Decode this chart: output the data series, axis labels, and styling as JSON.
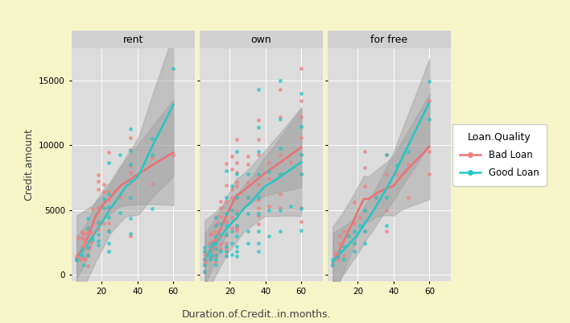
{
  "figure_bg": "#f5f5c8",
  "panel_bg": "#dcdcdc",
  "strip_bg": "#d0d0d0",
  "grid_color": "#ffffff",
  "bad_color": "#f08080",
  "good_color": "#26c6c6",
  "smooth_bad_color": "#f07070",
  "smooth_good_color": "#26c6c6",
  "ci_color": "#a0a0a0",
  "ci_alpha": 0.45,
  "ylabel": "Credit.amount",
  "xlabel": "Duration.of.Credit..in.months.",
  "legend_title": "Loan.Quality",
  "legend_bad": "Bad Loan",
  "legend_good": "Good Loan",
  "ylim": [
    -500,
    17500
  ],
  "xlim": [
    3,
    72
  ],
  "yticks": [
    0,
    5000,
    10000,
    15000
  ],
  "xticks": [
    20,
    40,
    60
  ],
  "point_size": 12,
  "point_alpha": 0.75,
  "facets": [
    "rent",
    "own",
    "for free"
  ],
  "rent_bad_x": [
    6,
    6,
    6,
    7,
    7,
    7,
    8,
    9,
    9,
    9,
    10,
    10,
    10,
    10,
    10,
    11,
    11,
    12,
    12,
    12,
    12,
    12,
    12,
    13,
    13,
    14,
    15,
    15,
    18,
    18,
    18,
    18,
    18,
    18,
    18,
    21,
    21,
    21,
    24,
    24,
    24,
    24,
    24,
    24,
    30,
    36,
    36,
    36,
    36,
    36,
    36,
    48,
    48,
    60
  ],
  "rent_bad_y": [
    1169,
    1244,
    1403,
    2835,
    1265,
    1386,
    1193,
    2096,
    2835,
    3311,
    1282,
    2137,
    2214,
    2759,
    3190,
    1193,
    2464,
    674,
    1474,
    1556,
    2065,
    3229,
    3565,
    2121,
    3585,
    2462,
    5132,
    3234,
    3500,
    3944,
    4111,
    5179,
    6621,
    7253,
    7721,
    4000,
    6415,
    6945,
    3444,
    3969,
    5129,
    5783,
    6419,
    9436,
    5990,
    3001,
    7127,
    7882,
    8383,
    9629,
    10585,
    7028,
    9055,
    9277
  ],
  "rent_good_x": [
    6,
    6,
    9,
    9,
    10,
    12,
    12,
    12,
    12,
    15,
    18,
    18,
    18,
    18,
    21,
    21,
    24,
    24,
    24,
    24,
    24,
    24,
    24,
    30,
    30,
    36,
    36,
    36,
    36,
    36,
    36,
    36,
    48,
    48,
    48,
    60
  ],
  "rent_good_y": [
    1085,
    1200,
    1500,
    1961,
    750,
    1500,
    2121,
    3578,
    4380,
    2728,
    2282,
    2625,
    3124,
    4020,
    5135,
    5825,
    1800,
    2412,
    3354,
    4394,
    5198,
    6204,
    8684,
    4795,
    9271,
    3184,
    4380,
    5951,
    7249,
    8532,
    9620,
    11289,
    5134,
    9277,
    10522,
    15945
  ],
  "own_bad_x": [
    6,
    6,
    6,
    6,
    6,
    6,
    6,
    7,
    8,
    9,
    9,
    9,
    10,
    10,
    10,
    10,
    10,
    10,
    12,
    12,
    12,
    12,
    12,
    12,
    12,
    12,
    12,
    12,
    12,
    13,
    15,
    15,
    15,
    15,
    15,
    15,
    18,
    18,
    18,
    18,
    18,
    18,
    18,
    18,
    18,
    21,
    21,
    21,
    21,
    21,
    21,
    24,
    24,
    24,
    24,
    24,
    24,
    24,
    24,
    24,
    24,
    24,
    30,
    30,
    30,
    30,
    36,
    36,
    36,
    36,
    36,
    36,
    36,
    36,
    36,
    42,
    42,
    42,
    48,
    48,
    48,
    48,
    48,
    48,
    54,
    60,
    60,
    60,
    60,
    60,
    60,
    60,
    60
  ],
  "own_bad_y": [
    250,
    766,
    929,
    1203,
    1264,
    1545,
    1800,
    1100,
    2418,
    1269,
    2418,
    3105,
    1346,
    1768,
    1823,
    2031,
    2570,
    3183,
    1000,
    1398,
    1479,
    1580,
    2001,
    2202,
    2728,
    2762,
    3386,
    3817,
    4455,
    4010,
    2000,
    2339,
    2964,
    4473,
    5171,
    5666,
    1503,
    1840,
    2103,
    2395,
    3066,
    4123,
    5640,
    6938,
    8618,
    3617,
    4394,
    5990,
    6619,
    8136,
    9149,
    3415,
    3637,
    3753,
    4756,
    4920,
    5898,
    6868,
    7178,
    7908,
    8654,
    10472,
    5913,
    7188,
    8523,
    9160,
    3944,
    4511,
    5189,
    5790,
    6952,
    7711,
    9277,
    10474,
    11938,
    5320,
    7409,
    8684,
    5139,
    6224,
    7789,
    9277,
    12217,
    14318,
    8745,
    4123,
    5139,
    7789,
    9277,
    10585,
    12217,
    13481,
    15945
  ],
  "own_good_x": [
    6,
    6,
    6,
    6,
    6,
    9,
    9,
    9,
    9,
    10,
    10,
    12,
    12,
    12,
    12,
    12,
    12,
    12,
    12,
    15,
    15,
    15,
    18,
    18,
    18,
    18,
    18,
    18,
    18,
    18,
    21,
    21,
    21,
    21,
    21,
    24,
    24,
    24,
    24,
    24,
    24,
    24,
    24,
    24,
    30,
    30,
    30,
    30,
    30,
    36,
    36,
    36,
    36,
    36,
    36,
    36,
    36,
    36,
    42,
    42,
    42,
    48,
    48,
    48,
    48,
    48,
    48,
    54,
    60,
    60,
    60,
    60,
    60,
    60
  ],
  "own_good_y": [
    250,
    766,
    1169,
    1800,
    2096,
    1193,
    1398,
    1800,
    2160,
    1503,
    2418,
    766,
    1169,
    1479,
    2001,
    2418,
    3000,
    3817,
    4395,
    1800,
    3104,
    3906,
    1398,
    1800,
    2160,
    3123,
    3817,
    4756,
    5990,
    8014,
    1580,
    2418,
    3354,
    5000,
    6868,
    1398,
    1800,
    2160,
    3000,
    3817,
    4756,
    5990,
    7789,
    9500,
    2418,
    3354,
    4756,
    5990,
    7789,
    1800,
    2418,
    3354,
    4756,
    5990,
    7789,
    9500,
    11398,
    14328,
    3000,
    5000,
    8000,
    3354,
    5000,
    7789,
    9800,
    12000,
    15000,
    5320,
    3414,
    5133,
    7789,
    9277,
    11481,
    14000
  ],
  "free_bad_x": [
    6,
    7,
    9,
    9,
    10,
    10,
    12,
    12,
    12,
    15,
    18,
    18,
    18,
    21,
    24,
    24,
    24,
    24,
    24,
    30,
    36,
    36,
    36,
    36,
    42,
    48,
    48,
    60,
    60,
    60
  ],
  "free_bad_y": [
    766,
    1653,
    1196,
    1479,
    2418,
    3000,
    1479,
    2160,
    3354,
    3000,
    2418,
    4000,
    5590,
    4394,
    3354,
    5000,
    6868,
    8254,
    9500,
    5990,
    3354,
    5000,
    7789,
    9277,
    7789,
    5990,
    8545,
    7789,
    9500,
    13481
  ],
  "free_good_x": [
    6,
    6,
    9,
    10,
    12,
    12,
    15,
    18,
    18,
    18,
    21,
    24,
    24,
    24,
    30,
    36,
    36,
    36,
    42,
    48,
    60,
    60
  ],
  "free_good_y": [
    766,
    1169,
    1398,
    1800,
    1169,
    2160,
    3000,
    1800,
    2418,
    3354,
    3817,
    2418,
    3354,
    5000,
    5990,
    3817,
    5990,
    9277,
    8500,
    9500,
    12000,
    14975
  ]
}
